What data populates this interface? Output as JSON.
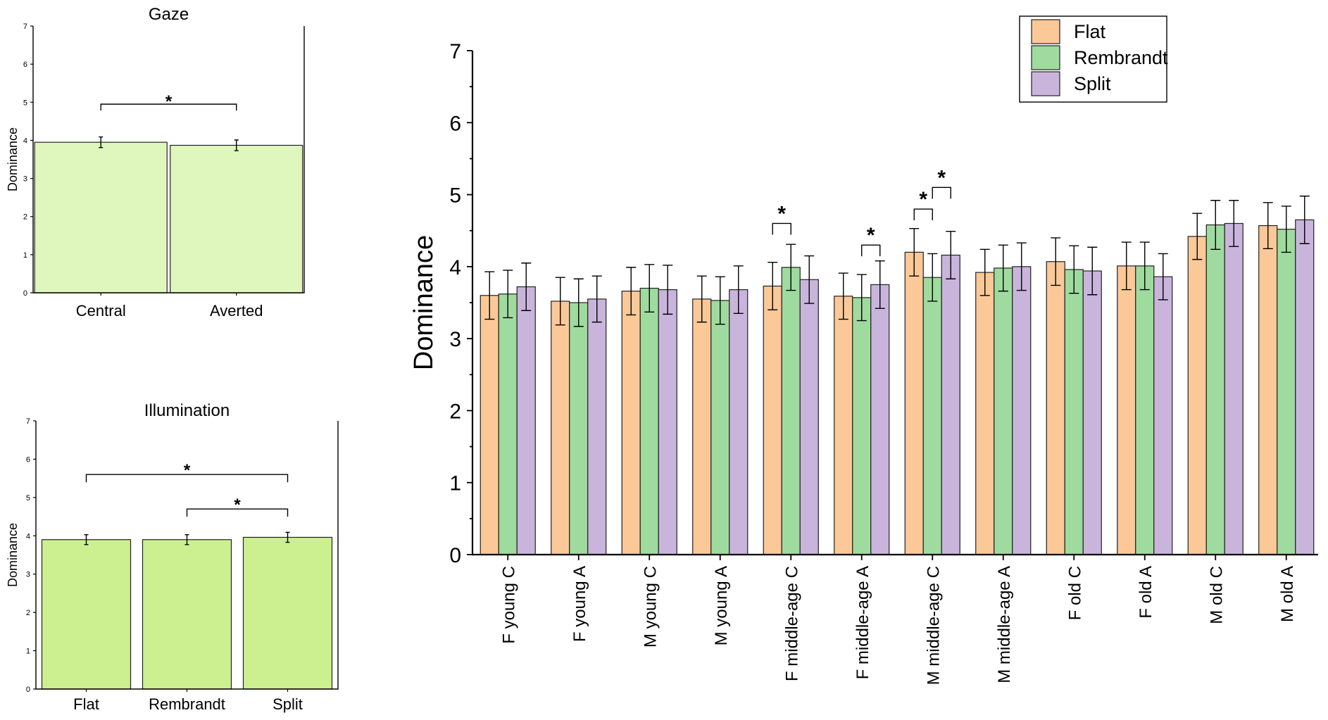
{
  "chart_data": [
    {
      "type": "bar",
      "id": "gaze",
      "title": "Gaze",
      "ylabel": "Dominance",
      "xlabel": "",
      "ylim": [
        0,
        7
      ],
      "yticks": [
        "0",
        "1",
        "2",
        "3",
        "4",
        "5",
        "6",
        "7"
      ],
      "categories": [
        "Central",
        "Averted"
      ],
      "values": [
        3.95,
        3.87
      ],
      "errors": [
        0.14,
        0.14
      ],
      "colors": {
        "fill": "#dff7bd"
      },
      "significance": [
        {
          "from": 0,
          "to": 1,
          "level": 4.95,
          "label": "*"
        }
      ]
    },
    {
      "type": "bar",
      "id": "illumination",
      "title": "Illumination",
      "ylabel": "Dominance",
      "xlabel": "",
      "ylim": [
        0,
        7
      ],
      "yticks": [
        "0",
        "1",
        "2",
        "3",
        "4",
        "5",
        "6",
        "7"
      ],
      "categories": [
        "Flat",
        "Rembrandt",
        "Split"
      ],
      "values": [
        3.9,
        3.9,
        3.96
      ],
      "errors": [
        0.13,
        0.13,
        0.13
      ],
      "colors": {
        "fill": "#ccf090"
      },
      "significance": [
        {
          "from": 0,
          "to": 2,
          "level": 5.6,
          "label": "*"
        },
        {
          "from": 1,
          "to": 2,
          "level": 4.7,
          "label": "*"
        }
      ]
    },
    {
      "type": "bar",
      "id": "main",
      "title": "",
      "ylabel": "Dominance",
      "xlabel": "",
      "ylim": [
        0,
        7
      ],
      "yticks": [
        "0",
        "1",
        "2",
        "3",
        "4",
        "5",
        "6",
        "7"
      ],
      "legend_position": "top-right",
      "categories": [
        "F young C",
        "F young A",
        "M young C",
        "M young A",
        "F middle-age C",
        "F middle-age A",
        "M middle-age C",
        "M middle-age A",
        "F old C",
        "F old A",
        "M old C",
        "M old A"
      ],
      "series": [
        {
          "name": "Flat",
          "color": "#fbc898",
          "values": [
            3.6,
            3.52,
            3.66,
            3.55,
            3.73,
            3.59,
            4.2,
            3.92,
            4.07,
            4.01,
            4.42,
            4.57
          ],
          "errors": [
            0.33,
            0.33,
            0.33,
            0.32,
            0.33,
            0.32,
            0.33,
            0.32,
            0.33,
            0.33,
            0.32,
            0.32
          ]
        },
        {
          "name": "Rembrandt",
          "color": "#9fdb9f",
          "values": [
            3.62,
            3.5,
            3.7,
            3.53,
            3.99,
            3.57,
            3.85,
            3.98,
            3.96,
            4.01,
            4.58,
            4.52
          ],
          "errors": [
            0.33,
            0.33,
            0.33,
            0.33,
            0.32,
            0.32,
            0.33,
            0.32,
            0.33,
            0.33,
            0.34,
            0.32
          ]
        },
        {
          "name": "Split",
          "color": "#c9b5dc",
          "values": [
            3.72,
            3.55,
            3.68,
            3.68,
            3.82,
            3.75,
            4.16,
            4.0,
            3.94,
            3.86,
            4.6,
            4.65
          ],
          "errors": [
            0.33,
            0.32,
            0.34,
            0.33,
            0.33,
            0.33,
            0.33,
            0.33,
            0.33,
            0.32,
            0.32,
            0.33
          ]
        }
      ],
      "significance": [
        {
          "category": 4,
          "from": 0,
          "to": 1,
          "level": 4.6,
          "label": "*"
        },
        {
          "category": 5,
          "from": 1,
          "to": 2,
          "level": 4.3,
          "label": "*"
        },
        {
          "category": 6,
          "from": 0,
          "to": 1,
          "level": 4.8,
          "label": "*"
        },
        {
          "category": 6,
          "from": 1,
          "to": 2,
          "level": 5.1,
          "label": "*"
        }
      ]
    }
  ]
}
